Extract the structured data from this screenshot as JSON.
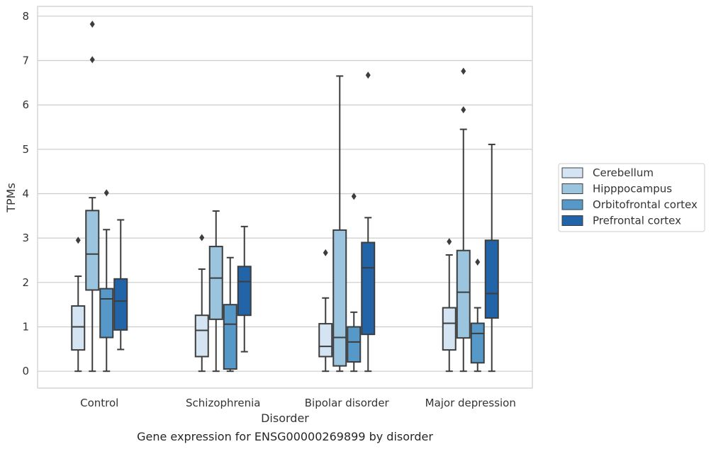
{
  "chart_data": {
    "type": "box",
    "categories": [
      "Control",
      "Schizophrenia",
      "Bipolar disorder",
      "Major depression"
    ],
    "xlabel": "Disorder",
    "ylabel": "TPMs",
    "caption": "Gene expression for ENSG00000269899 by disorder",
    "ylim": [
      -0.38,
      8.22
    ],
    "yticks": [
      0,
      1,
      2,
      3,
      4,
      5,
      6,
      7,
      8
    ],
    "grid": true,
    "legend_position": "right",
    "series": [
      {
        "name": "Cerebellum",
        "color": "#d4e4f3",
        "boxes": [
          {
            "whisker_low": 0.0,
            "q1": 0.48,
            "median": 1.0,
            "q3": 1.47,
            "whisker_high": 2.14,
            "outliers": [
              2.95
            ]
          },
          {
            "whisker_low": 0.0,
            "q1": 0.33,
            "median": 0.92,
            "q3": 1.26,
            "whisker_high": 2.3,
            "outliers": [
              3.01
            ]
          },
          {
            "whisker_low": 0.0,
            "q1": 0.33,
            "median": 0.56,
            "q3": 1.07,
            "whisker_high": 1.65,
            "outliers": [
              2.67
            ]
          },
          {
            "whisker_low": 0.0,
            "q1": 0.48,
            "median": 1.08,
            "q3": 1.43,
            "whisker_high": 2.62,
            "outliers": [
              2.92
            ]
          }
        ]
      },
      {
        "name": "Hipppocampus",
        "color": "#9bc4de",
        "boxes": [
          {
            "whisker_low": 0.0,
            "q1": 1.83,
            "median": 2.64,
            "q3": 3.62,
            "whisker_high": 3.91,
            "outliers": [
              7.02,
              7.82
            ]
          },
          {
            "whisker_low": 0.0,
            "q1": 1.17,
            "median": 2.1,
            "q3": 2.81,
            "whisker_high": 3.61,
            "outliers": []
          },
          {
            "whisker_low": 0.0,
            "q1": 0.12,
            "median": 0.76,
            "q3": 3.18,
            "whisker_high": 6.65,
            "outliers": []
          },
          {
            "whisker_low": 0.0,
            "q1": 0.75,
            "median": 1.78,
            "q3": 2.72,
            "whisker_high": 5.45,
            "outliers": [
              5.89,
              6.76
            ]
          }
        ]
      },
      {
        "name": "Orbitofrontal cortex",
        "color": "#5698c7",
        "boxes": [
          {
            "whisker_low": 0.0,
            "q1": 0.76,
            "median": 1.63,
            "q3": 1.86,
            "whisker_high": 3.19,
            "outliers": [
              4.02
            ]
          },
          {
            "whisker_low": 0.0,
            "q1": 0.05,
            "median": 1.06,
            "q3": 1.5,
            "whisker_high": 2.56,
            "outliers": []
          },
          {
            "whisker_low": 0.0,
            "q1": 0.21,
            "median": 0.66,
            "q3": 1.0,
            "whisker_high": 1.33,
            "outliers": [
              3.94
            ]
          },
          {
            "whisker_low": 0.0,
            "q1": 0.19,
            "median": 0.85,
            "q3": 1.08,
            "whisker_high": 1.43,
            "outliers": [
              2.46
            ]
          }
        ]
      },
      {
        "name": "Prefrontal cortex",
        "color": "#2264a8",
        "boxes": [
          {
            "whisker_low": 0.49,
            "q1": 0.93,
            "median": 1.58,
            "q3": 2.08,
            "whisker_high": 3.41,
            "outliers": []
          },
          {
            "whisker_low": 0.44,
            "q1": 1.26,
            "median": 2.02,
            "q3": 2.36,
            "whisker_high": 3.26,
            "outliers": []
          },
          {
            "whisker_low": 0.0,
            "q1": 0.83,
            "median": 2.33,
            "q3": 2.9,
            "whisker_high": 3.46,
            "outliers": [
              6.67
            ]
          },
          {
            "whisker_low": 0.0,
            "q1": 1.2,
            "median": 1.75,
            "q3": 2.95,
            "whisker_high": 5.11,
            "outliers": []
          }
        ]
      }
    ]
  }
}
